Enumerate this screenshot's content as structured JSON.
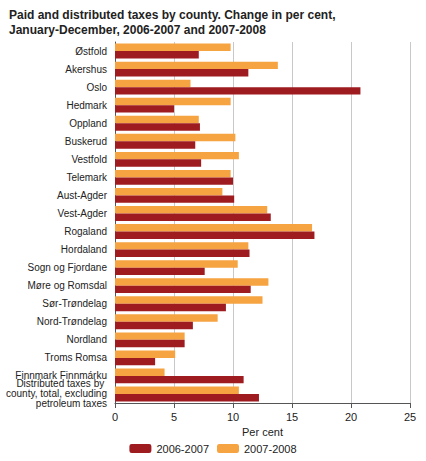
{
  "chart_data": {
    "type": "bar",
    "orientation": "horizontal",
    "title": "Paid and distributed taxes by county. Change in per cent, January-December, 2006-2007 and 2007-2008",
    "x_label": "Per cent",
    "categories": [
      "Østfold",
      "Akershus",
      "Oslo",
      "Hedmark",
      "Oppland",
      "Buskerud",
      "Vestfold",
      "Telemark",
      "Aust-Agder",
      "Vest-Agder",
      "Rogaland",
      "Hordaland",
      "Sogn og Fjordane",
      "Møre og Romsdal",
      "Sør-Trøndelag",
      "Nord-Trøndelag",
      "Nordland",
      "Troms Romsa",
      "Finnmark Finnmárku",
      "Distributed taxes by county, total, excluding petroleum taxes"
    ],
    "series": [
      {
        "name": "2006-2007",
        "color": "#9e1b20",
        "values": [
          7.1,
          11.3,
          20.8,
          5.0,
          7.2,
          6.8,
          7.3,
          10.0,
          10.1,
          13.2,
          16.9,
          11.4,
          7.6,
          11.5,
          9.4,
          6.6,
          5.9,
          3.4,
          10.9,
          12.2
        ]
      },
      {
        "name": "2007-2008",
        "color": "#f6a341",
        "values": [
          9.8,
          13.8,
          6.4,
          9.8,
          7.1,
          10.2,
          10.5,
          9.8,
          9.1,
          12.9,
          16.7,
          11.3,
          10.4,
          13.0,
          12.5,
          8.7,
          5.9,
          5.1,
          4.2,
          10.5
        ]
      }
    ],
    "xlim": [
      0,
      25
    ],
    "xticks": [
      0,
      5,
      10,
      15,
      20,
      25
    ],
    "grid": true,
    "legend": "bottom"
  }
}
